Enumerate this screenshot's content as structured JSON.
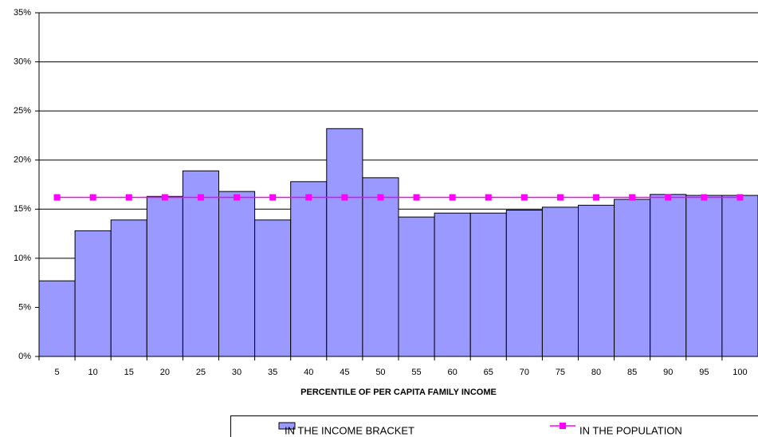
{
  "chart_data": {
    "type": "bar",
    "x_label": "PERCENTILE OF PER CAPITA FAMILY INCOME",
    "categories": [
      "5",
      "10",
      "15",
      "20",
      "25",
      "30",
      "35",
      "40",
      "45",
      "50",
      "55",
      "60",
      "65",
      "70",
      "75",
      "80",
      "85",
      "90",
      "95",
      "100"
    ],
    "series": [
      {
        "name": "IN THE INCOME BRACKET",
        "type": "bar",
        "color": "#9999ff",
        "values": [
          7.7,
          12.8,
          13.9,
          16.3,
          18.9,
          16.8,
          13.9,
          17.8,
          23.2,
          18.2,
          14.2,
          14.6,
          14.6,
          14.9,
          15.2,
          15.4,
          16.0,
          16.5,
          16.4,
          16.4
        ]
      },
      {
        "name": "IN THE POPULATION",
        "type": "line",
        "color": "#ff00ff",
        "values": [
          16.2,
          16.2,
          16.2,
          16.2,
          16.2,
          16.2,
          16.2,
          16.2,
          16.2,
          16.2,
          16.2,
          16.2,
          16.2,
          16.2,
          16.2,
          16.2,
          16.2,
          16.2,
          16.2,
          16.2
        ]
      }
    ],
    "ylim": [
      0,
      35
    ],
    "yticks": [
      {
        "value": 0,
        "label": "0%"
      },
      {
        "value": 5,
        "label": "5%"
      },
      {
        "value": 10,
        "label": "10%"
      },
      {
        "value": 15,
        "label": "15%"
      },
      {
        "value": 20,
        "label": "20%"
      },
      {
        "value": 25,
        "label": "25%"
      },
      {
        "value": 30,
        "label": "30%"
      },
      {
        "value": 35,
        "label": "35%"
      }
    ],
    "grid": true,
    "legend": "bottom"
  }
}
